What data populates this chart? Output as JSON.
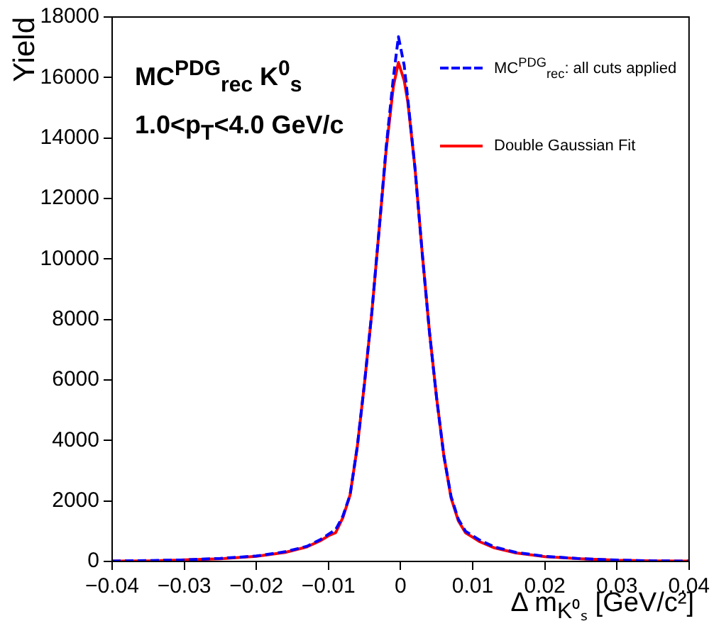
{
  "chart_data": {
    "type": "line",
    "xlabel": "Δ m$_{K⁰ₛ}$ [GeV/c²]",
    "ylabel": "Yield",
    "annotations": [
      "MC$^{PDG}$$_{rec}$ K$^{0}$$_{s}$",
      "1.0<p$_{T}$<4.0 GeV/c"
    ],
    "xlim": [
      -0.04,
      0.04
    ],
    "xticks": [
      {
        "value": -0.04,
        "label": "−0.04"
      },
      {
        "value": -0.03,
        "label": "−0.03"
      },
      {
        "value": -0.02,
        "label": "−0.02"
      },
      {
        "value": -0.01,
        "label": "−0.01"
      },
      0,
      0.01,
      0.02,
      0.03,
      0.04
    ],
    "ylim": [
      0,
      18000
    ],
    "yticks": [
      0,
      2000,
      4000,
      6000,
      8000,
      10000,
      12000,
      14000,
      16000,
      18000
    ],
    "grid": false,
    "legend": "top right",
    "marker": "none",
    "x": [
      -0.04,
      -0.035,
      -0.03,
      -0.025,
      -0.02,
      -0.016,
      -0.013,
      -0.011,
      -0.01,
      -0.009,
      -0.008,
      -0.007,
      -0.006,
      -0.005,
      -0.004,
      -0.003,
      -0.002,
      -0.001,
      -0.0003,
      0.0005,
      0.001,
      0.002,
      0.003,
      0.004,
      0.005,
      0.006,
      0.007,
      0.008,
      0.009,
      0.01,
      0.011,
      0.013,
      0.016,
      0.02,
      0.025,
      0.03,
      0.035,
      0.04
    ],
    "series": [
      {
        "name": "MC$^{PDG}$$_{rec}$: all cuts applied",
        "color": "#0000ff",
        "line_style": "dashed",
        "values": [
          10,
          30,
          50,
          100,
          180,
          320,
          500,
          740,
          900,
          1050,
          1500,
          2200,
          3800,
          5900,
          8200,
          10900,
          13700,
          16000,
          17350,
          16400,
          15300,
          13000,
          10200,
          7600,
          5400,
          3500,
          2150,
          1400,
          1000,
          850,
          700,
          480,
          300,
          170,
          90,
          45,
          20,
          10
        ]
      },
      {
        "name": "Double Gaussian Fit",
        "color": "#ff0000",
        "line_style": "solid",
        "values": [
          10,
          20,
          50,
          90,
          170,
          300,
          480,
          700,
          850,
          950,
          1450,
          2200,
          3800,
          5900,
          8200,
          10900,
          13600,
          15700,
          16500,
          15900,
          15200,
          13000,
          10200,
          7600,
          5400,
          3500,
          2100,
          1350,
          950,
          800,
          650,
          450,
          280,
          160,
          90,
          40,
          20,
          10
        ]
      }
    ]
  }
}
